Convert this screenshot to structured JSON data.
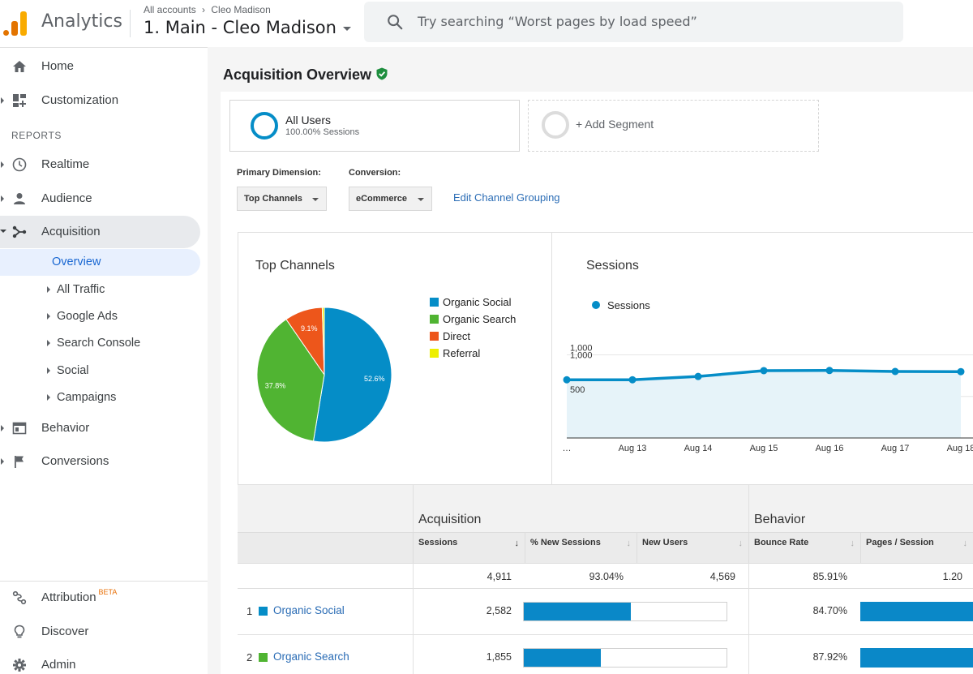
{
  "header": {
    "app_title": "Analytics",
    "breadcrumb": [
      "All accounts",
      "Cleo Madison"
    ],
    "property": "1. Main - Cleo Madison",
    "search_placeholder": "Try searching “Worst pages by load speed”"
  },
  "sidebar": {
    "home": "Home",
    "customization": "Customization",
    "reports_label": "REPORTS",
    "realtime": "Realtime",
    "audience": "Audience",
    "acquisition": "Acquisition",
    "acq_sub": [
      "Overview",
      "All Traffic",
      "Google Ads",
      "Search Console",
      "Social",
      "Campaigns"
    ],
    "behavior": "Behavior",
    "conversions": "Conversions",
    "attribution": "Attribution",
    "attribution_badge": "BETA",
    "discover": "Discover",
    "admin": "Admin"
  },
  "main": {
    "title": "Acquisition Overview",
    "segments": {
      "all_title": "All Users",
      "all_sub": "100.00% Sessions",
      "add": "+ Add Segment"
    },
    "primary_dimension_label": "Primary Dimension:",
    "primary_dimension_value": "Top Channels",
    "conversion_label": "Conversion:",
    "conversion_value": "eCommerce",
    "edit_link": "Edit Channel Grouping"
  },
  "colors": {
    "organic_social": "#058dc7",
    "organic_search": "#50b432",
    "direct": "#ed561b",
    "referral": "#edef00",
    "accent_blue": "#0a88c8"
  },
  "chart_data": [
    {
      "type": "pie",
      "title": "Top Channels",
      "labels": [
        "Organic Social",
        "Organic Search",
        "Direct",
        "Referral"
      ],
      "values": [
        52.6,
        37.8,
        9.1,
        0.5
      ],
      "value_labels": [
        "52.6%",
        "37.8%",
        "9.1%",
        ""
      ],
      "legend": "right"
    },
    {
      "type": "area",
      "title": "Sessions",
      "series": [
        {
          "name": "Sessions",
          "values": [
            700,
            700,
            740,
            810,
            812,
            800,
            798
          ]
        }
      ],
      "x": [
        "…",
        "Aug 13",
        "Aug 14",
        "Aug 15",
        "Aug 16",
        "Aug 17",
        "Aug 18"
      ],
      "y_ticks": [
        "1,000",
        "500"
      ],
      "ylim": [
        0,
        1200
      ],
      "legend": "top-left"
    }
  ],
  "table": {
    "group_acquisition": "Acquisition",
    "group_behavior": "Behavior",
    "headers": [
      "Sessions",
      "% New Sessions",
      "New Users",
      "Bounce Rate",
      "Pages / Session"
    ],
    "sort_arrow": "↓",
    "totals": [
      "4,911",
      "93.04%",
      "4,569",
      "85.91%",
      "1.20"
    ],
    "rows": [
      {
        "num": "1",
        "channel": "Organic Social",
        "sessions": "2,582",
        "new_sessions_pct": 0.526,
        "bounce": "84.70%"
      },
      {
        "num": "2",
        "channel": "Organic Search",
        "sessions": "1,855",
        "new_sessions_pct": 0.378,
        "bounce": "87.92%"
      }
    ]
  }
}
